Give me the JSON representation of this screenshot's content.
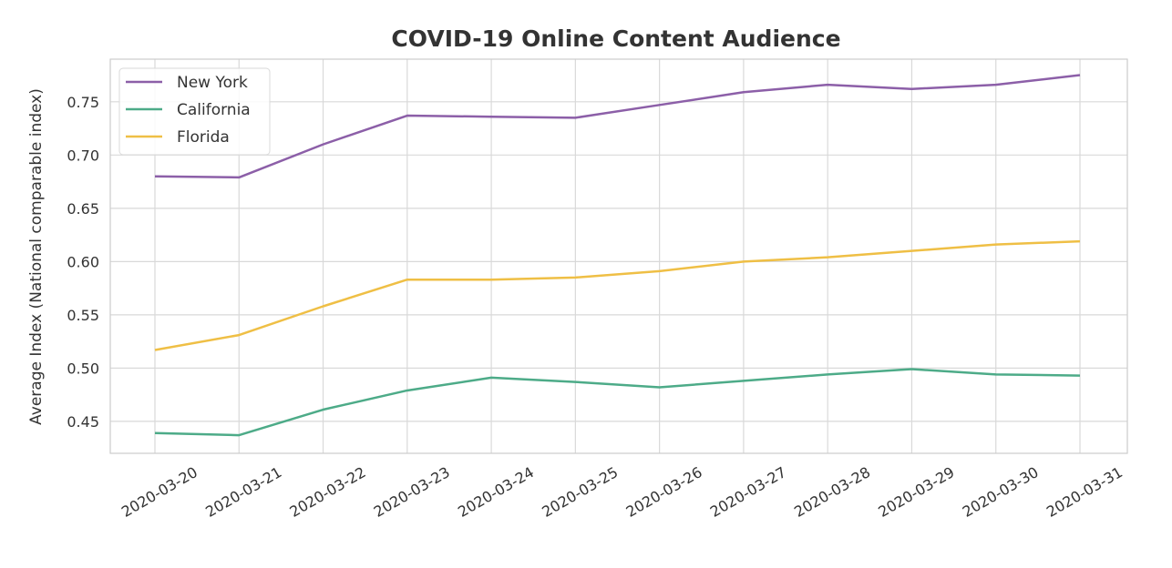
{
  "chart_data": {
    "type": "line",
    "title": "COVID-19 Online Content Audience",
    "xlabel": "",
    "ylabel": "Average Index (National comparable index)",
    "x": [
      "2020-03-20",
      "2020-03-21",
      "2020-03-22",
      "2020-03-23",
      "2020-03-24",
      "2020-03-25",
      "2020-03-26",
      "2020-03-27",
      "2020-03-28",
      "2020-03-29",
      "2020-03-30",
      "2020-03-31"
    ],
    "ylim": [
      0.42,
      0.79
    ],
    "yticks": [
      0.45,
      0.5,
      0.55,
      0.6,
      0.65,
      0.7,
      0.75
    ],
    "ytick_labels": [
      "0.45",
      "0.50",
      "0.55",
      "0.60",
      "0.65",
      "0.70",
      "0.75"
    ],
    "grid": true,
    "legend_placement": "top-left",
    "series": [
      {
        "name": "New York",
        "color": "#8c5fa8",
        "values": [
          0.68,
          0.679,
          0.71,
          0.737,
          0.736,
          0.735,
          0.747,
          0.759,
          0.766,
          0.762,
          0.766,
          0.775
        ]
      },
      {
        "name": "California",
        "color": "#4dab88",
        "values": [
          0.439,
          0.437,
          0.461,
          0.479,
          0.491,
          0.487,
          0.482,
          0.488,
          0.494,
          0.499,
          0.494,
          0.493
        ]
      },
      {
        "name": "Florida",
        "color": "#efbf45",
        "values": [
          0.517,
          0.531,
          0.558,
          0.583,
          0.583,
          0.585,
          0.591,
          0.6,
          0.604,
          0.61,
          0.616,
          0.619
        ]
      }
    ]
  }
}
